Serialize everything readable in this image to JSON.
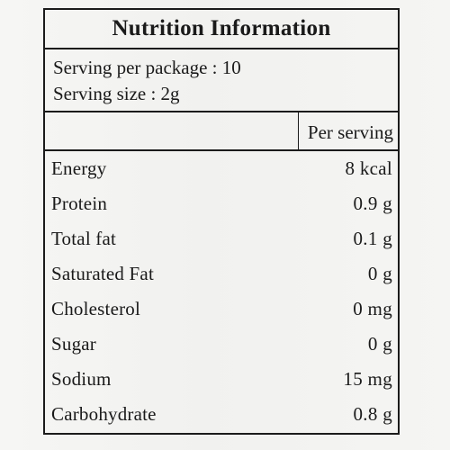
{
  "title": "Nutrition Information",
  "serving": {
    "per_package": "Serving per package : 10",
    "size": "Serving size : 2g"
  },
  "column_header": "Per serving",
  "nutrients": [
    {
      "name": "Energy",
      "value": "8 kcal"
    },
    {
      "name": "Protein",
      "value": "0.9 g"
    },
    {
      "name": "Total fat",
      "value": "0.1 g"
    },
    {
      "name": "Saturated Fat",
      "value": "0 g"
    },
    {
      "name": "Cholesterol",
      "value": "0 mg"
    },
    {
      "name": "Sugar",
      "value": "0 g"
    },
    {
      "name": "Sodium",
      "value": "15 mg"
    },
    {
      "name": "Carbohydrate",
      "value": "0.8 g"
    }
  ]
}
